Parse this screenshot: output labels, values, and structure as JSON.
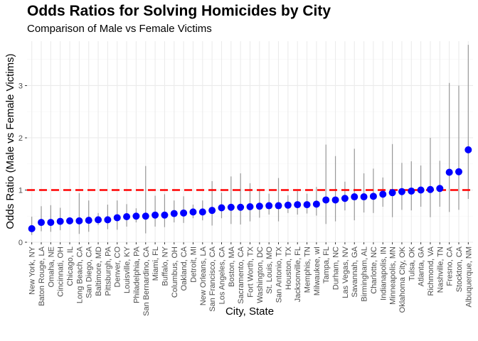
{
  "chart_data": {
    "type": "scatter",
    "title": "Odds Ratios for Solving Homicides by City",
    "subtitle": "Comparison of Male vs Female Victims",
    "xlabel": "City, State",
    "ylabel": "Odds Ratio (Male vs Female Victims)",
    "ylim": [
      0,
      3.85
    ],
    "yticks": [
      0,
      1,
      2,
      3
    ],
    "reference_line": {
      "y": 1,
      "color": "#ff0000",
      "style": "dashed"
    },
    "grid": true,
    "colors": {
      "point": "#0000ff",
      "errorbar": "#999999",
      "grid_major": "#ebebeb",
      "grid_minor": "#f5f5f5"
    },
    "categories": [
      "New York, NY",
      "Baton Rouge, LA",
      "Omaha, NE",
      "Cincinnati, OH",
      "Chicago, IL",
      "Long Beach, CA",
      "San Diego, CA",
      "Baltimore, MD",
      "Pittsburgh, PA",
      "Denver, CO",
      "Louisville, KY",
      "Philadelphia, PA",
      "San Bernardino, CA",
      "Miami, FL",
      "Buffalo, NY",
      "Columbus, OH",
      "Oakland, CA",
      "Detroit, MI",
      "New Orleans, LA",
      "San Francisco, CA",
      "Los Angeles, CA",
      "Boston, MA",
      "Sacramento, CA",
      "Fort Worth, TX",
      "Washington, DC",
      "St. Louis, MO",
      "San Antonio, TX",
      "Houston, TX",
      "Jacksonville, FL",
      "Memphis, TN",
      "Milwaukee, wI",
      "Tampa, FL",
      "Durham, NC",
      "Las Vegas, NV",
      "Savannah, GA",
      "Birmingham, AL",
      "Charlotte, NC",
      "Indianapolis, IN",
      "Minneapolis, MN",
      "Oklahoma City, OK",
      "Tulsa, OK",
      "Atlanta, GA",
      "Richmond, VA",
      "Nashville, TN",
      "Fresno, CA",
      "Stockton, CA",
      "Albuquerque, NM"
    ],
    "values": [
      0.26,
      0.38,
      0.38,
      0.4,
      0.41,
      0.41,
      0.42,
      0.43,
      0.43,
      0.47,
      0.49,
      0.5,
      0.5,
      0.52,
      0.52,
      0.55,
      0.56,
      0.58,
      0.58,
      0.61,
      0.66,
      0.67,
      0.67,
      0.68,
      0.69,
      0.7,
      0.7,
      0.71,
      0.72,
      0.72,
      0.73,
      0.81,
      0.81,
      0.84,
      0.87,
      0.87,
      0.88,
      0.92,
      0.95,
      0.97,
      0.98,
      1.0,
      1.01,
      1.03,
      1.34,
      1.35,
      1.77
    ],
    "ci_low": [
      0.14,
      0.21,
      0.2,
      0.23,
      0.35,
      0.16,
      0.2,
      0.33,
      0.25,
      0.24,
      0.3,
      0.38,
      0.17,
      0.3,
      0.29,
      0.38,
      0.37,
      0.46,
      0.42,
      0.32,
      0.46,
      0.35,
      0.34,
      0.4,
      0.47,
      0.53,
      0.4,
      0.56,
      0.53,
      0.55,
      0.51,
      0.35,
      0.4,
      0.61,
      0.42,
      0.57,
      0.56,
      0.68,
      0.48,
      0.62,
      0.61,
      0.68,
      0.48,
      0.68,
      0.58,
      0.62,
      0.83
    ],
    "ci_high": [
      0.49,
      0.69,
      0.71,
      0.66,
      0.48,
      0.94,
      0.8,
      0.56,
      0.72,
      0.8,
      0.73,
      0.65,
      1.46,
      0.89,
      0.92,
      0.8,
      0.88,
      0.72,
      0.8,
      1.17,
      0.95,
      1.26,
      1.32,
      1.13,
      1.0,
      0.93,
      1.23,
      0.9,
      0.98,
      0.93,
      1.06,
      1.87,
      1.65,
      1.16,
      1.79,
      1.32,
      1.41,
      1.24,
      1.88,
      1.52,
      1.55,
      1.47,
      2.0,
      1.56,
      3.05,
      3.0,
      3.78
    ]
  }
}
